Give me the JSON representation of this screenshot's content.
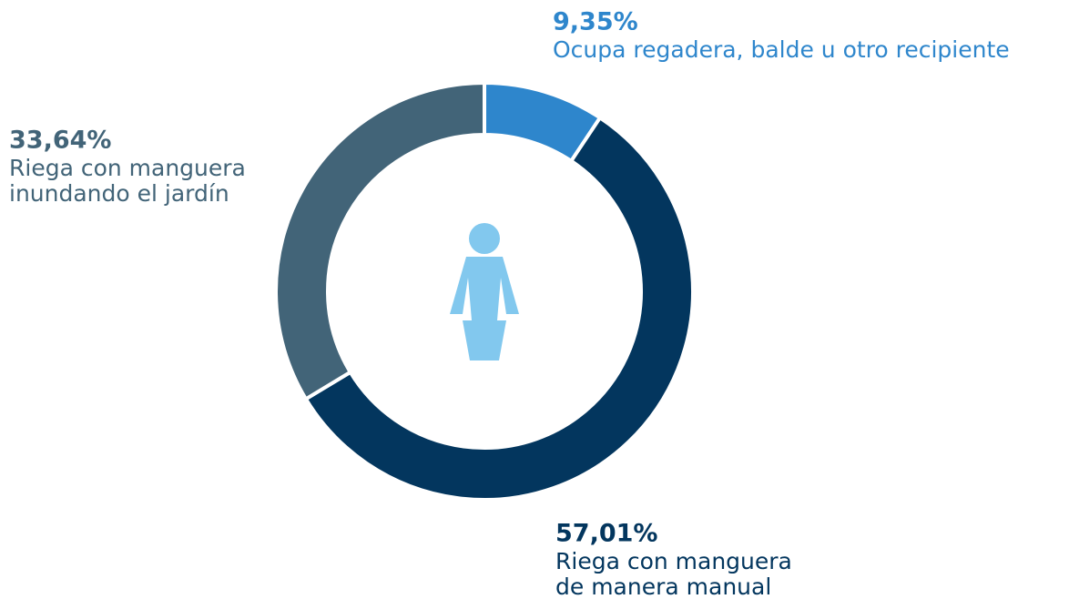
{
  "chart_data": {
    "type": "donut",
    "categories": [
      [
        "Ocupa regadera, balde u otro recipiente"
      ],
      [
        "Riega con manguera",
        "de manera manual"
      ],
      [
        "Riega con manguera",
        "inundando el jardín"
      ]
    ],
    "values": [
      9.35,
      57.01,
      33.64
    ],
    "value_labels": [
      "9,35%",
      "57,01%",
      "33,64%"
    ],
    "colors": [
      "#2e86cc",
      "#03365e",
      "#426478"
    ]
  }
}
